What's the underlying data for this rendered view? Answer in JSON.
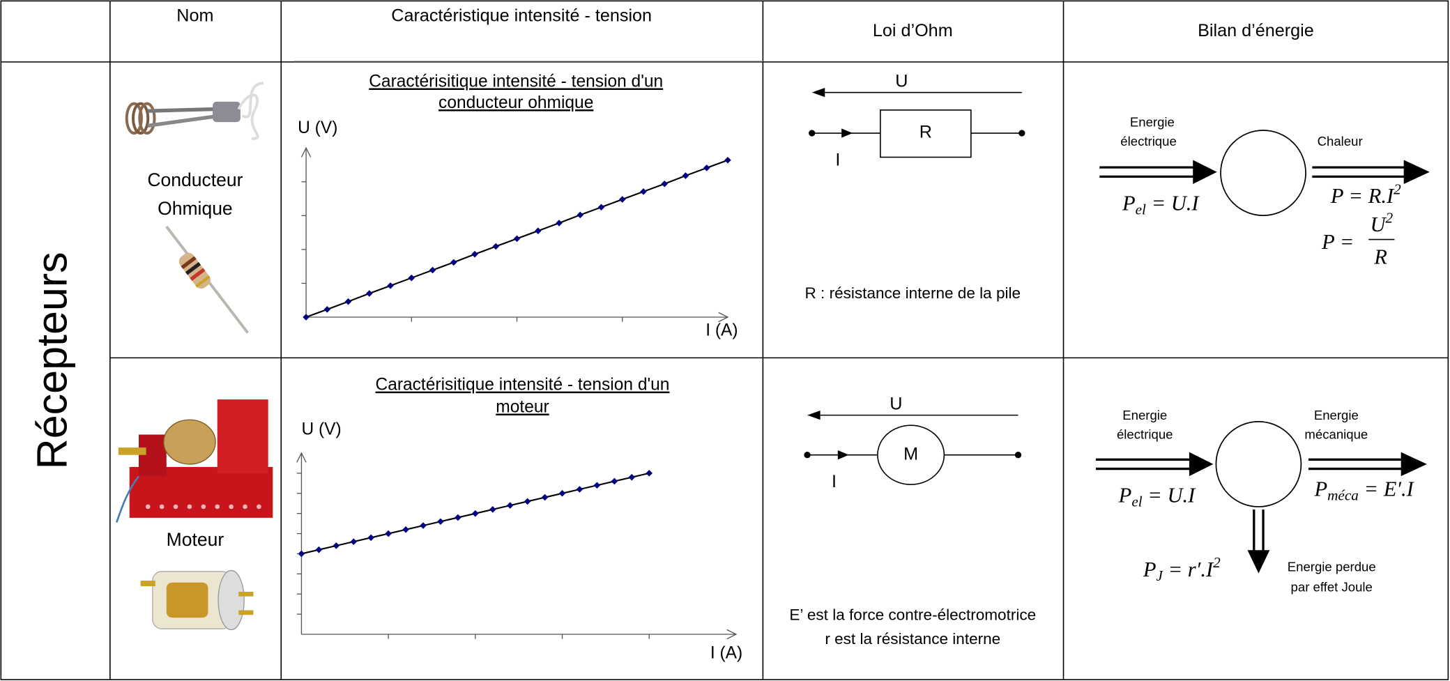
{
  "header": [
    "Nom",
    "Caractéristique intensité - tension",
    "Loi d’Ohm",
    "Bilan d’énergie"
  ],
  "row_group": "Récepteurs",
  "rows": [
    {
      "name": [
        "Conducteur",
        "Ohmique"
      ],
      "ohm": {
        "voltage": "U",
        "component": "R",
        "current": "I",
        "caption": [
          "R : résistance interne de la pile"
        ]
      },
      "energy": {
        "input": [
          "Energie",
          "électrique"
        ],
        "output": [
          "Chaleur"
        ],
        "input_formula": {
          "symbol": "P",
          "sub": "el",
          "rest": " = U.I"
        },
        "output_formulas": [
          {
            "symbol": "P = R.I",
            "sup": "2"
          },
          {
            "symbol": "P = ",
            "num": "U",
            "sup": "2",
            "den": "R"
          }
        ]
      }
    },
    {
      "name": [
        "Moteur"
      ],
      "ohm": {
        "voltage": "U",
        "component": "M",
        "current": "I",
        "caption": [
          "E’ est la force contre-électromotrice",
          "r est la résistance interne"
        ]
      },
      "energy": {
        "input": [
          "Energie",
          "électrique"
        ],
        "output": [
          "Energie",
          "mécanique"
        ],
        "input_formula": {
          "symbol": "P",
          "sub": "el",
          "rest": " = U.I"
        },
        "output_formulas": [
          {
            "symbol": "P",
            "sub": "méca",
            "rest": " = E′.I"
          }
        ],
        "loss": [
          "Energie perdue",
          "par effet Joule"
        ],
        "loss_formula": {
          "symbol": "P",
          "sub": "J",
          "rest": " = r′.I",
          "sup": "2"
        }
      }
    }
  ],
  "chart_data": [
    {
      "type": "line",
      "title": [
        "Caractérisitique intensité - tension d'un",
        "conducteur ohmique"
      ],
      "y_label": "U (V)",
      "x_label": "I (A)",
      "x": [
        0,
        0.2,
        0.4,
        0.6,
        0.8,
        1,
        1.2,
        1.4,
        1.6,
        1.8,
        2,
        2.2,
        2.4,
        2.6,
        2.8,
        3,
        3.2,
        3.4,
        3.6,
        3.8,
        4
      ],
      "values": [
        0,
        0.23,
        0.46,
        0.7,
        0.93,
        1.16,
        1.39,
        1.62,
        1.86,
        2.09,
        2.32,
        2.55,
        2.78,
        3.02,
        3.25,
        3.48,
        3.71,
        3.94,
        4.18,
        4.41,
        4.64
      ],
      "color": "#000080",
      "line_color": "#000000",
      "xlim": [
        0,
        4
      ],
      "ylim": [
        0,
        5
      ],
      "xticks": [
        1,
        2,
        3
      ],
      "yticks": [
        1,
        2,
        3,
        4
      ]
    },
    {
      "type": "line",
      "title": [
        "Caractérisitique intensité - tension d'un",
        "moteur"
      ],
      "y_label": "U (V)",
      "x_label": "I (A)",
      "x": [
        0,
        0.2,
        0.4,
        0.6,
        0.8,
        1,
        1.2,
        1.4,
        1.6,
        1.8,
        2,
        2.2,
        2.4,
        2.6,
        2.8,
        3,
        3.2,
        3.4,
        3.6,
        3.8,
        4
      ],
      "values": [
        4,
        4.2,
        4.4,
        4.6,
        4.8,
        5,
        5.2,
        5.4,
        5.6,
        5.8,
        6,
        6.2,
        6.4,
        6.6,
        6.8,
        7,
        7.2,
        7.4,
        7.6,
        7.8,
        8
      ],
      "color": "#000080",
      "line_color": "#000000",
      "xlim": [
        0,
        5
      ],
      "ylim": [
        0,
        9
      ],
      "xticks": [
        1,
        2,
        3,
        4
      ],
      "yticks": [
        1,
        2,
        3,
        4,
        5,
        6,
        7,
        8
      ]
    }
  ]
}
